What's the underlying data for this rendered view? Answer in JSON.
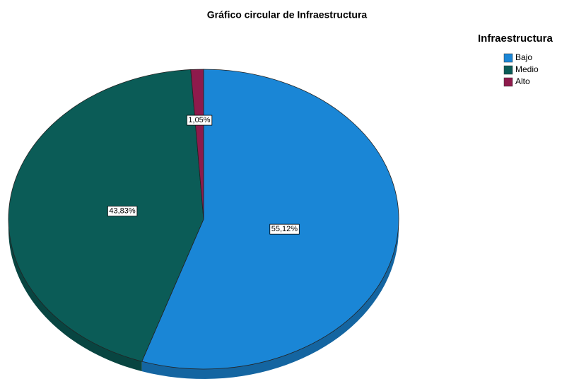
{
  "chart_data": {
    "type": "pie",
    "title": "Gráfico circular de Infraestructura",
    "legend_title": "Infraestructura",
    "categories": [
      "Bajo",
      "Medio",
      "Alto"
    ],
    "values": [
      55.12,
      43.83,
      1.05
    ],
    "value_labels": [
      "55,12%",
      "43,83%",
      "1,05%"
    ],
    "colors": [
      "#1a86d6",
      "#0b5c57",
      "#8e1a4c"
    ],
    "legend": "top-right"
  }
}
